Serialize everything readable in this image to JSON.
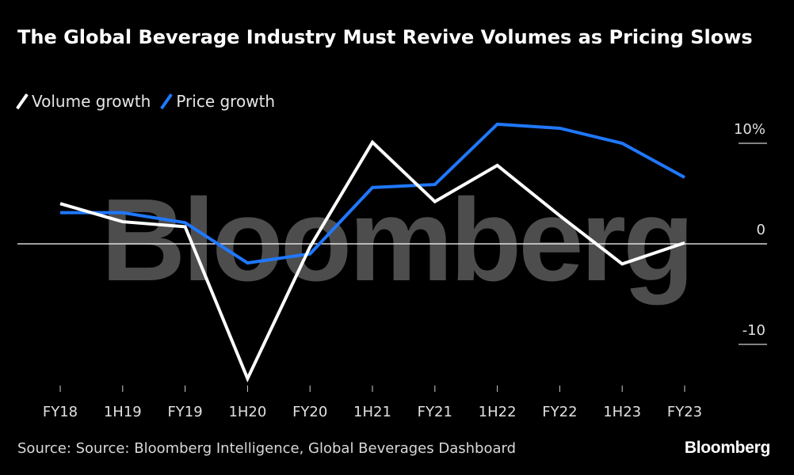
{
  "header": {
    "title": "The Global Beverage Industry Must Revive Volumes as Pricing Slows"
  },
  "legend": [
    {
      "label": "Volume growth",
      "color": "#ffffff"
    },
    {
      "label": "Price growth",
      "color": "#1f78ff"
    }
  ],
  "watermark": "Bloomberg",
  "footer": {
    "source": "Source: Source: Bloomberg Intelligence, Global Beverages Dashboard",
    "logo": "Bloomberg"
  },
  "chart_data": {
    "type": "line",
    "title": "The Global Beverage Industry Must Revive Volumes as Pricing Slows",
    "xlabel": "",
    "ylabel": "",
    "categories": [
      "FY18",
      "1H19",
      "FY19",
      "1H20",
      "FY20",
      "1H21",
      "FY21",
      "1H22",
      "FY22",
      "1H23",
      "FY23"
    ],
    "series": [
      {
        "name": "Volume growth",
        "color": "#ffffff",
        "values": [
          4.0,
          2.2,
          1.7,
          -13.4,
          -0.3,
          10.1,
          4.2,
          7.8,
          2.8,
          -2.0,
          0.1
        ]
      },
      {
        "name": "Price growth",
        "color": "#1f78ff",
        "values": [
          3.1,
          3.1,
          2.1,
          -1.9,
          -1.0,
          5.6,
          5.9,
          11.9,
          11.5,
          10.0,
          6.6
        ]
      }
    ],
    "yticks": [
      {
        "value": 10,
        "label": "10%"
      },
      {
        "value": 0,
        "label": "0"
      },
      {
        "value": -10,
        "label": "-10"
      }
    ],
    "ylim": [
      -14,
      12.5
    ],
    "grid": false,
    "zero_line": true,
    "y_axis_side": "right",
    "legend_position": "top-left"
  }
}
